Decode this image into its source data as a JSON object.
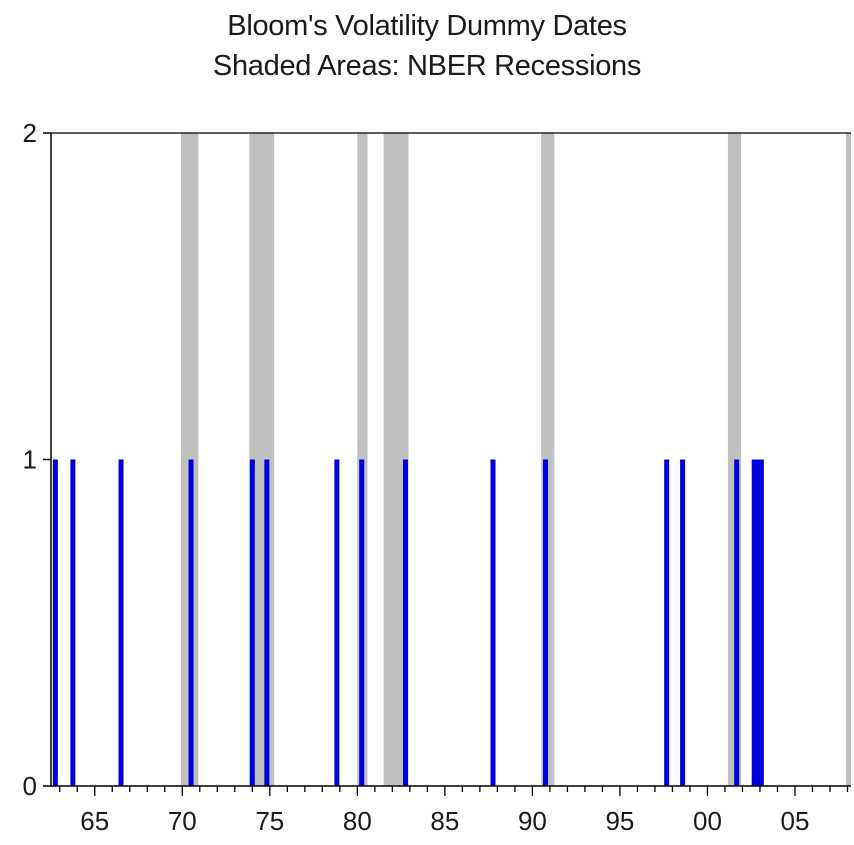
{
  "chart_data": {
    "type": "bar",
    "title": "Bloom's Volatility Dummy Dates",
    "subtitle": "Shaded Areas: NBER Recessions",
    "xlabel": "",
    "ylabel": "",
    "xlim": [
      1962.5,
      2008.2
    ],
    "ylim": [
      0,
      2
    ],
    "grid": false,
    "legend": "none",
    "x_ticks": [
      1965,
      1970,
      1975,
      1980,
      1985,
      1990,
      1995,
      2000,
      2005
    ],
    "x_tick_labels": [
      "65",
      "70",
      "75",
      "80",
      "85",
      "90",
      "95",
      "00",
      "05"
    ],
    "y_ticks": [
      0,
      1,
      2
    ],
    "y_tick_labels": [
      "0",
      "1",
      "2"
    ],
    "colors": {
      "dummy": "#0000dd",
      "recession": "#c0c0c0"
    },
    "recessions": [
      {
        "start": 1969.92,
        "end": 1970.92
      },
      {
        "start": 1973.83,
        "end": 1975.25
      },
      {
        "start": 1980.0,
        "end": 1980.58
      },
      {
        "start": 1981.5,
        "end": 1982.92
      },
      {
        "start": 1990.5,
        "end": 1991.25
      },
      {
        "start": 2001.17,
        "end": 2001.92
      },
      {
        "start": 2007.92,
        "end": 2008.2
      }
    ],
    "dummy_dates": [
      {
        "x": 1962.75,
        "value": 1
      },
      {
        "x": 1963.75,
        "value": 1
      },
      {
        "x": 1966.5,
        "value": 1
      },
      {
        "x": 1970.5,
        "value": 1
      },
      {
        "x": 1974.0,
        "value": 1
      },
      {
        "x": 1974.83,
        "value": 1
      },
      {
        "x": 1978.83,
        "value": 1
      },
      {
        "x": 1980.25,
        "value": 1
      },
      {
        "x": 1982.75,
        "value": 1
      },
      {
        "x": 1987.75,
        "value": 1
      },
      {
        "x": 1990.75,
        "value": 1
      },
      {
        "x": 1997.67,
        "value": 1
      },
      {
        "x": 1998.58,
        "value": 1
      },
      {
        "x": 2001.67,
        "value": 1
      },
      {
        "x": 2002.67,
        "value": 1
      },
      {
        "x": 2002.92,
        "value": 1
      },
      {
        "x": 2003.08,
        "value": 1
      }
    ]
  }
}
